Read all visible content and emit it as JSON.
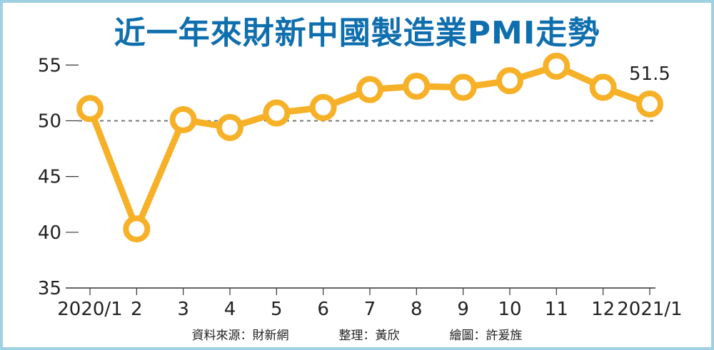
{
  "title": "近一年來財新中國製造業PMI走勢",
  "chart_data": {
    "type": "line",
    "categories": [
      "2020/1",
      "2",
      "3",
      "4",
      "5",
      "6",
      "7",
      "8",
      "9",
      "10",
      "11",
      "12",
      "2021/1"
    ],
    "values": [
      51.1,
      40.3,
      50.1,
      49.4,
      50.7,
      51.2,
      52.8,
      53.1,
      53.0,
      53.6,
      54.9,
      53.0,
      51.5
    ],
    "yticks": [
      35,
      40,
      45,
      50,
      55
    ],
    "ylim": [
      35,
      57
    ],
    "reference_line": 50,
    "last_label": "51.5",
    "colors": {
      "line": "#f6b128",
      "marker_fill": "#ffffff",
      "reference": "#777777",
      "axis": "#333333",
      "title": "#0f6fae",
      "frame": "#9fd1e3"
    }
  },
  "credits": {
    "source": "資料來源：財新網",
    "editor": "整理：黃欣",
    "artist": "繪圖：許爰旌"
  }
}
